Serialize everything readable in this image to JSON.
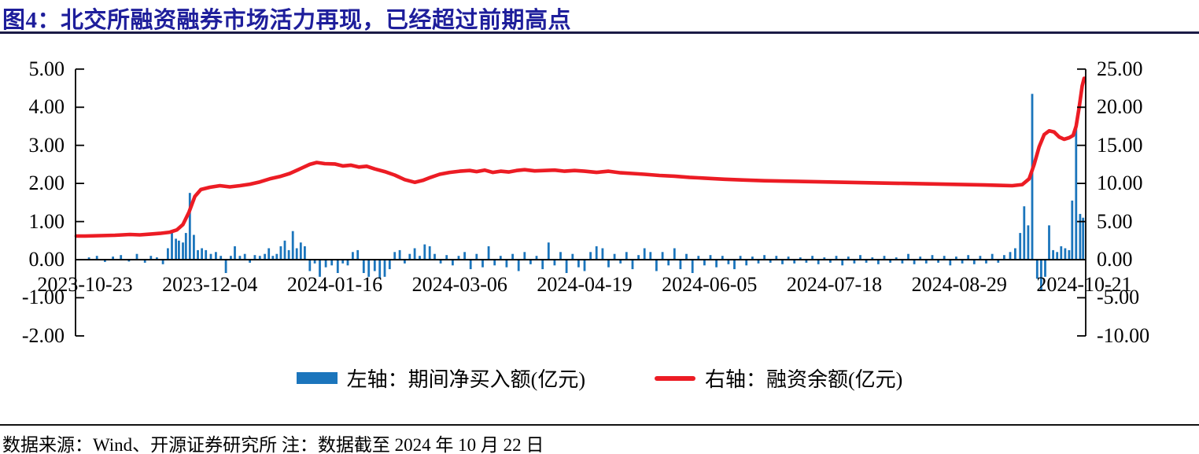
{
  "figure": {
    "title": "图4：北交所融资融券市场活力再现，已经超过前期高点",
    "source_note": "数据来源：Wind、开源证券研究所  注：数据截至 2024 年 10 月 22 日"
  },
  "legend": {
    "bars_label": "左轴：期间净买入额(亿元)",
    "line_label": "右轴：融资余额(亿元)"
  },
  "colors": {
    "bar": "#1B75BC",
    "line": "#EC1C24",
    "title": "#1E1E9B",
    "top_rule": "#1B1B46",
    "bottom_rule": "#111111",
    "axis": "#000000"
  },
  "chart_data": {
    "type": "bar+line dual-axis",
    "title": "北交所融资融券市场活力再现，已经超过前期高点",
    "x_axis": {
      "note": "t = fraction along x axis; 0 = first tick (2023-10-23), 1 = last tick (2024-10-21)",
      "tick_labels": [
        "2023-10-23",
        "2023-12-04",
        "2024-01-16",
        "2024-03-06",
        "2024-04-19",
        "2024-06-05",
        "2024-07-18",
        "2024-08-29",
        "2024-10-21"
      ],
      "tick_t": [
        0,
        0.125,
        0.25,
        0.375,
        0.5,
        0.625,
        0.75,
        0.875,
        1
      ]
    },
    "left_axis": {
      "series": "期间净买入额(亿元)",
      "tick_labels": [
        "5.00",
        "4.00",
        "3.00",
        "2.00",
        "1.00",
        "0.00",
        "-1.00",
        "-2.00"
      ],
      "tick_values": [
        5,
        4,
        3,
        2,
        1,
        0,
        -1,
        -2
      ],
      "range": [
        -2,
        5
      ]
    },
    "right_axis": {
      "series": "融资余额(亿元)",
      "tick_labels": [
        "25.00",
        "20.00",
        "15.00",
        "10.00",
        "5.00",
        "0.00",
        "-5.00",
        "-10.00"
      ],
      "tick_values": [
        25,
        20,
        15,
        10,
        5,
        0,
        -5,
        -10
      ],
      "range": [
        -10,
        25
      ]
    },
    "bar_series": {
      "name": "左轴：期间净买入额(亿元)",
      "axis": "left",
      "points": [
        [
          0.004,
          0.06
        ],
        [
          0.012,
          0.1
        ],
        [
          0.02,
          -0.06
        ],
        [
          0.028,
          0.08
        ],
        [
          0.036,
          0.12
        ],
        [
          0.044,
          -0.05
        ],
        [
          0.052,
          0.15
        ],
        [
          0.06,
          -0.08
        ],
        [
          0.066,
          0.1
        ],
        [
          0.072,
          0.06
        ],
        [
          0.078,
          -0.12
        ],
        [
          0.083,
          0.3
        ],
        [
          0.087,
          0.75
        ],
        [
          0.091,
          0.55
        ],
        [
          0.094,
          0.5
        ],
        [
          0.098,
          0.45
        ],
        [
          0.101,
          0.7
        ],
        [
          0.105,
          1.75
        ],
        [
          0.109,
          0.65
        ],
        [
          0.113,
          0.25
        ],
        [
          0.117,
          0.3
        ],
        [
          0.121,
          0.25
        ],
        [
          0.126,
          0.15
        ],
        [
          0.131,
          0.2
        ],
        [
          0.136,
          0.1
        ],
        [
          0.141,
          -0.35
        ],
        [
          0.146,
          0.1
        ],
        [
          0.15,
          0.35
        ],
        [
          0.155,
          0.1
        ],
        [
          0.16,
          0.15
        ],
        [
          0.165,
          -0.08
        ],
        [
          0.17,
          0.12
        ],
        [
          0.175,
          0.1
        ],
        [
          0.18,
          0.15
        ],
        [
          0.184,
          0.3
        ],
        [
          0.188,
          0.1
        ],
        [
          0.192,
          0.15
        ],
        [
          0.196,
          0.35
        ],
        [
          0.2,
          0.5
        ],
        [
          0.204,
          0.25
        ],
        [
          0.208,
          0.75
        ],
        [
          0.212,
          0.3
        ],
        [
          0.216,
          0.45
        ],
        [
          0.22,
          0.35
        ],
        [
          0.225,
          -0.3
        ],
        [
          0.23,
          -0.1
        ],
        [
          0.235,
          -0.45
        ],
        [
          0.241,
          -0.2
        ],
        [
          0.247,
          -0.15
        ],
        [
          0.253,
          -0.35
        ],
        [
          0.258,
          -0.1
        ],
        [
          0.263,
          -0.15
        ],
        [
          0.268,
          0.2
        ],
        [
          0.273,
          0.25
        ],
        [
          0.279,
          -0.35
        ],
        [
          0.284,
          -0.45
        ],
        [
          0.29,
          -0.3
        ],
        [
          0.295,
          -0.5
        ],
        [
          0.3,
          -0.45
        ],
        [
          0.305,
          -0.25
        ],
        [
          0.31,
          0.2
        ],
        [
          0.315,
          0.25
        ],
        [
          0.32,
          -0.1
        ],
        [
          0.325,
          0.15
        ],
        [
          0.33,
          0.3
        ],
        [
          0.335,
          0.1
        ],
        [
          0.34,
          0.4
        ],
        [
          0.345,
          0.35
        ],
        [
          0.35,
          0.15
        ],
        [
          0.356,
          -0.1
        ],
        [
          0.362,
          0.12
        ],
        [
          0.368,
          -0.15
        ],
        [
          0.374,
          0.1
        ],
        [
          0.38,
          0.2
        ],
        [
          0.386,
          -0.25
        ],
        [
          0.392,
          0.15
        ],
        [
          0.398,
          -0.2
        ],
        [
          0.404,
          0.35
        ],
        [
          0.41,
          -0.15
        ],
        [
          0.416,
          0.1
        ],
        [
          0.422,
          -0.2
        ],
        [
          0.428,
          0.15
        ],
        [
          0.434,
          -0.3
        ],
        [
          0.44,
          0.2
        ],
        [
          0.446,
          -0.12
        ],
        [
          0.452,
          0.1
        ],
        [
          0.458,
          -0.25
        ],
        [
          0.464,
          0.45
        ],
        [
          0.47,
          -0.15
        ],
        [
          0.476,
          0.2
        ],
        [
          0.482,
          -0.35
        ],
        [
          0.488,
          0.15
        ],
        [
          0.494,
          -0.2
        ],
        [
          0.5,
          -0.3
        ],
        [
          0.506,
          0.2
        ],
        [
          0.512,
          0.35
        ],
        [
          0.518,
          0.3
        ],
        [
          0.524,
          -0.2
        ],
        [
          0.53,
          0.15
        ],
        [
          0.536,
          -0.1
        ],
        [
          0.542,
          0.2
        ],
        [
          0.548,
          -0.25
        ],
        [
          0.554,
          0.12
        ],
        [
          0.56,
          0.3
        ],
        [
          0.566,
          0.2
        ],
        [
          0.572,
          -0.3
        ],
        [
          0.578,
          0.2
        ],
        [
          0.584,
          -0.15
        ],
        [
          0.59,
          0.3
        ],
        [
          0.596,
          -0.25
        ],
        [
          0.602,
          0.15
        ],
        [
          0.608,
          -0.35
        ],
        [
          0.614,
          0.1
        ],
        [
          0.62,
          -0.15
        ],
        [
          0.626,
          0.12
        ],
        [
          0.632,
          -0.2
        ],
        [
          0.638,
          0.1
        ],
        [
          0.644,
          -0.12
        ],
        [
          0.65,
          -0.25
        ],
        [
          0.656,
          0.1
        ],
        [
          0.662,
          -0.15
        ],
        [
          0.668,
          0.08
        ],
        [
          0.674,
          -0.1
        ],
        [
          0.68,
          0.12
        ],
        [
          0.686,
          -0.08
        ],
        [
          0.692,
          0.1
        ],
        [
          0.698,
          -0.12
        ],
        [
          0.704,
          0.08
        ],
        [
          0.71,
          -0.1
        ],
        [
          0.716,
          0.06
        ],
        [
          0.722,
          -0.08
        ],
        [
          0.728,
          0.1
        ],
        [
          0.734,
          -0.12
        ],
        [
          0.74,
          0.06
        ],
        [
          0.746,
          -0.08
        ],
        [
          0.752,
          0.1
        ],
        [
          0.758,
          -0.15
        ],
        [
          0.764,
          0.08
        ],
        [
          0.77,
          -0.1
        ],
        [
          0.776,
          0.12
        ],
        [
          0.782,
          -0.08
        ],
        [
          0.788,
          0.06
        ],
        [
          0.794,
          -0.12
        ],
        [
          0.8,
          0.1
        ],
        [
          0.806,
          -0.08
        ],
        [
          0.812,
          0.06
        ],
        [
          0.818,
          -0.1
        ],
        [
          0.824,
          0.15
        ],
        [
          0.83,
          -0.12
        ],
        [
          0.836,
          0.08
        ],
        [
          0.842,
          -0.1
        ],
        [
          0.848,
          0.12
        ],
        [
          0.854,
          -0.08
        ],
        [
          0.86,
          0.1
        ],
        [
          0.866,
          -0.15
        ],
        [
          0.872,
          0.08
        ],
        [
          0.878,
          -0.1
        ],
        [
          0.884,
          0.12
        ],
        [
          0.89,
          -0.12
        ],
        [
          0.896,
          0.1
        ],
        [
          0.902,
          -0.1
        ],
        [
          0.908,
          0.15
        ],
        [
          0.914,
          -0.08
        ],
        [
          0.92,
          0.12
        ],
        [
          0.926,
          0.2
        ],
        [
          0.931,
          0.3
        ],
        [
          0.936,
          0.7
        ],
        [
          0.94,
          1.4
        ],
        [
          0.944,
          0.9
        ],
        [
          0.948,
          4.35
        ],
        [
          0.953,
          -0.5
        ],
        [
          0.957,
          -0.8
        ],
        [
          0.961,
          -0.45
        ],
        [
          0.965,
          0.9
        ],
        [
          0.969,
          0.25
        ],
        [
          0.973,
          0.2
        ],
        [
          0.977,
          0.35
        ],
        [
          0.981,
          0.3
        ],
        [
          0.985,
          0.25
        ],
        [
          0.988,
          1.55
        ],
        [
          0.992,
          3.45
        ],
        [
          0.996,
          1.2
        ],
        [
          0.999,
          1.1
        ]
      ]
    },
    "line_series": {
      "name": "右轴：融资余额(亿元)",
      "axis": "right",
      "points": [
        [
          0,
          3.1
        ],
        [
          0.015,
          3.15
        ],
        [
          0.03,
          3.2
        ],
        [
          0.045,
          3.3
        ],
        [
          0.055,
          3.25
        ],
        [
          0.065,
          3.35
        ],
        [
          0.075,
          3.45
        ],
        [
          0.085,
          3.6
        ],
        [
          0.092,
          3.9
        ],
        [
          0.098,
          4.6
        ],
        [
          0.104,
          6.2
        ],
        [
          0.11,
          8.3
        ],
        [
          0.116,
          9.2
        ],
        [
          0.125,
          9.5
        ],
        [
          0.135,
          9.7
        ],
        [
          0.145,
          9.55
        ],
        [
          0.155,
          9.7
        ],
        [
          0.165,
          9.9
        ],
        [
          0.175,
          10.2
        ],
        [
          0.185,
          10.6
        ],
        [
          0.195,
          10.9
        ],
        [
          0.205,
          11.3
        ],
        [
          0.215,
          11.9
        ],
        [
          0.225,
          12.5
        ],
        [
          0.232,
          12.75
        ],
        [
          0.24,
          12.6
        ],
        [
          0.25,
          12.55
        ],
        [
          0.258,
          12.3
        ],
        [
          0.266,
          12.4
        ],
        [
          0.274,
          12.15
        ],
        [
          0.282,
          12.25
        ],
        [
          0.29,
          11.9
        ],
        [
          0.3,
          11.55
        ],
        [
          0.31,
          11.1
        ],
        [
          0.32,
          10.5
        ],
        [
          0.33,
          10.15
        ],
        [
          0.338,
          10.4
        ],
        [
          0.346,
          10.8
        ],
        [
          0.355,
          11.2
        ],
        [
          0.365,
          11.45
        ],
        [
          0.375,
          11.6
        ],
        [
          0.385,
          11.7
        ],
        [
          0.392,
          11.55
        ],
        [
          0.4,
          11.75
        ],
        [
          0.408,
          11.45
        ],
        [
          0.416,
          11.6
        ],
        [
          0.424,
          11.5
        ],
        [
          0.432,
          11.7
        ],
        [
          0.44,
          11.8
        ],
        [
          0.45,
          11.65
        ],
        [
          0.46,
          11.7
        ],
        [
          0.47,
          11.75
        ],
        [
          0.48,
          11.6
        ],
        [
          0.49,
          11.7
        ],
        [
          0.5,
          11.6
        ],
        [
          0.512,
          11.45
        ],
        [
          0.524,
          11.6
        ],
        [
          0.536,
          11.4
        ],
        [
          0.548,
          11.3
        ],
        [
          0.56,
          11.2
        ],
        [
          0.575,
          11.05
        ],
        [
          0.59,
          10.95
        ],
        [
          0.605,
          10.8
        ],
        [
          0.62,
          10.7
        ],
        [
          0.64,
          10.55
        ],
        [
          0.66,
          10.45
        ],
        [
          0.68,
          10.35
        ],
        [
          0.7,
          10.3
        ],
        [
          0.72,
          10.25
        ],
        [
          0.74,
          10.2
        ],
        [
          0.76,
          10.15
        ],
        [
          0.78,
          10.1
        ],
        [
          0.8,
          10.05
        ],
        [
          0.82,
          10
        ],
        [
          0.84,
          9.95
        ],
        [
          0.86,
          9.9
        ],
        [
          0.88,
          9.85
        ],
        [
          0.9,
          9.8
        ],
        [
          0.915,
          9.75
        ],
        [
          0.928,
          9.7
        ],
        [
          0.938,
          9.85
        ],
        [
          0.945,
          10.6
        ],
        [
          0.95,
          12.5
        ],
        [
          0.955,
          14.8
        ],
        [
          0.96,
          16.4
        ],
        [
          0.965,
          16.9
        ],
        [
          0.97,
          16.75
        ],
        [
          0.975,
          16.1
        ],
        [
          0.98,
          15.8
        ],
        [
          0.985,
          16
        ],
        [
          0.989,
          16.3
        ],
        [
          0.992,
          17.5
        ],
        [
          0.995,
          20
        ],
        [
          0.998,
          22.8
        ],
        [
          1,
          23.8
        ]
      ]
    }
  }
}
